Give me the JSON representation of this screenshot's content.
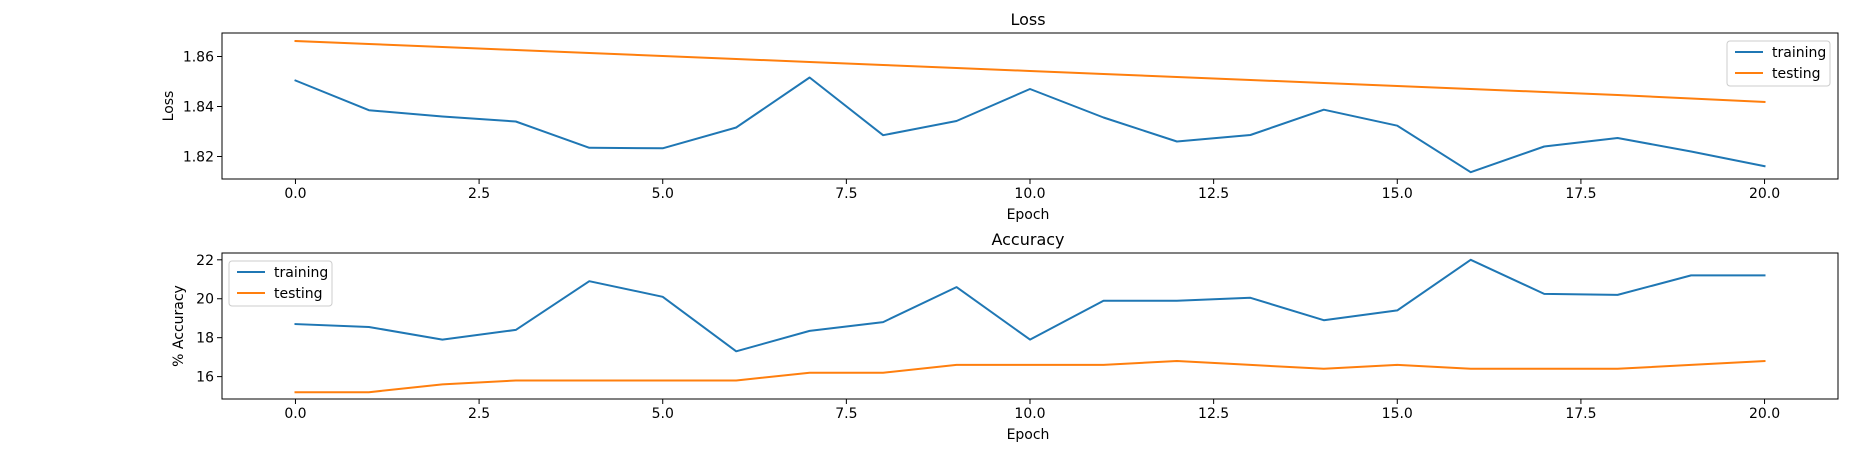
{
  "chart_data": [
    {
      "type": "line",
      "title": "Loss",
      "xlabel": "Epoch",
      "ylabel": "Loss",
      "x": [
        0,
        1,
        2,
        3,
        4,
        5,
        6,
        7,
        8,
        9,
        10,
        11,
        12,
        13,
        14,
        15,
        16,
        17,
        18,
        19,
        20
      ],
      "xlim": [
        -1,
        21
      ],
      "ylim": [
        1.811,
        1.8694
      ],
      "xticks": [
        0.0,
        2.5,
        5.0,
        7.5,
        10.0,
        12.5,
        15.0,
        17.5,
        20.0
      ],
      "xtick_labels": [
        "0.0",
        "2.5",
        "5.0",
        "7.5",
        "10.0",
        "12.5",
        "15.0",
        "17.5",
        "20.0"
      ],
      "yticks": [
        1.82,
        1.84,
        1.86
      ],
      "ytick_labels": [
        "1.82",
        "1.84",
        "1.86"
      ],
      "grid": false,
      "legend_position": "upper-right",
      "series": [
        {
          "name": "training",
          "color": "#1f77b4",
          "values": [
            1.8504,
            1.8385,
            1.836,
            1.834,
            1.8235,
            1.8233,
            1.8316,
            1.8516,
            1.8285,
            1.8342,
            1.847,
            1.8356,
            1.826,
            1.8286,
            1.8387,
            1.8323,
            1.8137,
            1.824,
            1.8274,
            1.822,
            1.8161
          ]
        },
        {
          "name": "testing",
          "color": "#ff7f0e",
          "values": [
            1.8662,
            1.865,
            1.8638,
            1.8626,
            1.8614,
            1.8602,
            1.859,
            1.8578,
            1.8566,
            1.8554,
            1.8542,
            1.853,
            1.8518,
            1.8506,
            1.8494,
            1.8482,
            1.847,
            1.8458,
            1.8446,
            1.8432,
            1.8418
          ]
        }
      ]
    },
    {
      "type": "line",
      "title": "Accuracy",
      "xlabel": "Epoch",
      "ylabel": "% Accuracy",
      "x": [
        0,
        1,
        2,
        3,
        4,
        5,
        6,
        7,
        8,
        9,
        10,
        11,
        12,
        13,
        14,
        15,
        16,
        17,
        18,
        19,
        20
      ],
      "xlim": [
        -1,
        21
      ],
      "ylim": [
        14.85,
        22.35
      ],
      "xticks": [
        0.0,
        2.5,
        5.0,
        7.5,
        10.0,
        12.5,
        15.0,
        17.5,
        20.0
      ],
      "xtick_labels": [
        "0.0",
        "2.5",
        "5.0",
        "7.5",
        "10.0",
        "12.5",
        "15.0",
        "17.5",
        "20.0"
      ],
      "yticks": [
        16,
        18,
        20,
        22
      ],
      "ytick_labels": [
        "16",
        "18",
        "20",
        "22"
      ],
      "grid": false,
      "legend_position": "upper-left",
      "series": [
        {
          "name": "training",
          "color": "#1f77b4",
          "values": [
            18.7,
            18.55,
            17.9,
            18.4,
            20.9,
            20.1,
            17.3,
            18.35,
            18.8,
            20.6,
            17.9,
            19.9,
            19.9,
            20.05,
            18.9,
            19.4,
            22.0,
            20.25,
            20.2,
            21.2,
            21.2
          ]
        },
        {
          "name": "testing",
          "color": "#ff7f0e",
          "values": [
            15.2,
            15.2,
            15.6,
            15.8,
            15.8,
            15.8,
            15.8,
            16.2,
            16.2,
            16.6,
            16.6,
            16.6,
            16.8,
            16.6,
            16.4,
            16.6,
            16.4,
            16.4,
            16.4,
            16.6,
            16.8
          ]
        }
      ]
    }
  ]
}
